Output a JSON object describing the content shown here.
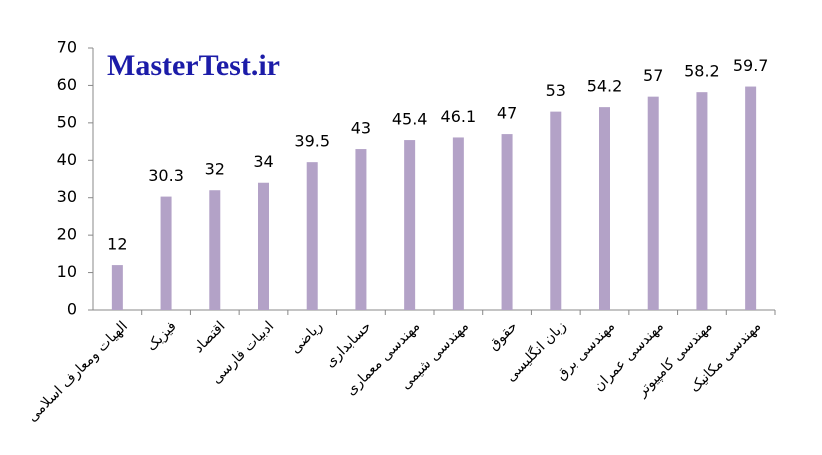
{
  "chart_data": {
    "type": "bar",
    "watermark": "MasterTest.ir",
    "categories": [
      "الهیات ومعارف اسلامی",
      "فیزیک",
      "اقتصاد",
      "ادبیات فارسی",
      "ریاضی",
      "حسابداری",
      "مهندسی معماری",
      "مهندسی شیمی",
      "حقوق",
      "زبان انگلیسی",
      "مهندسی برق",
      "مهندسی عمران",
      "مهندسی کامپیوتر",
      "مهندسی مکانیک"
    ],
    "values": [
      12,
      30.3,
      32,
      34,
      39.5,
      43,
      45.4,
      46.1,
      47,
      53,
      54.2,
      57,
      58.2,
      59.7
    ],
    "color": "#b3a2c7",
    "ylim": [
      0,
      70
    ],
    "yticks": [
      0,
      10,
      20,
      30,
      40,
      50,
      60,
      70
    ],
    "grid": false
  }
}
